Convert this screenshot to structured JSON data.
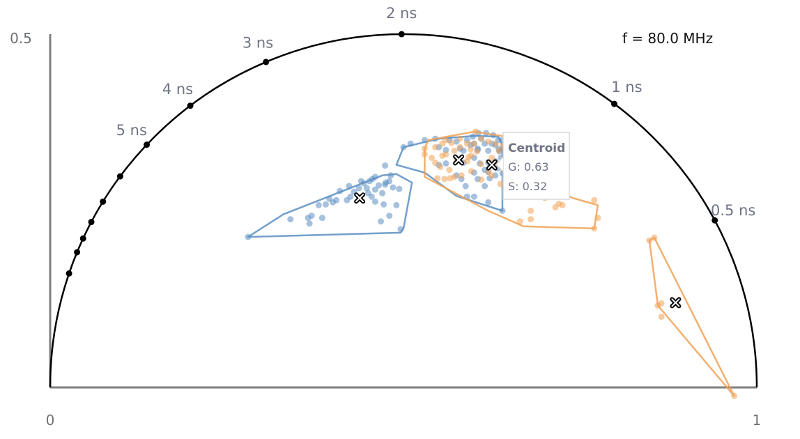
{
  "chart_data": {
    "type": "scatter",
    "title": "",
    "frequency_label": "f = 80.0 MHz",
    "xlim": [
      0,
      1
    ],
    "ylim": [
      0,
      0.5
    ],
    "x_ticks": [
      "0",
      "1"
    ],
    "y_ticks": [
      "0.5"
    ],
    "semicircle": {
      "lifetime_labels": [
        "0.5 ns",
        "1 ns",
        "2 ns",
        "3 ns",
        "4 ns",
        "5 ns"
      ],
      "lifetime_values_ns": [
        0.5,
        1,
        2,
        3,
        4,
        5
      ],
      "marker_lifetimes_ns": [
        0.5,
        1,
        2,
        3,
        4,
        5,
        6,
        7,
        8,
        9,
        10,
        12
      ]
    },
    "colors": {
      "blue": "#5b8ec2",
      "orange": "#f0a255",
      "semicircle": "#000000",
      "axis": "#7f7f7f"
    },
    "series": [
      {
        "color": "blue",
        "points": [
          [
            0.28,
            0.213
          ],
          [
            0.34,
            0.238
          ],
          [
            0.365,
            0.24
          ],
          [
            0.37,
            0.243
          ],
          [
            0.367,
            0.232
          ],
          [
            0.385,
            0.24
          ],
          [
            0.38,
            0.258
          ],
          [
            0.39,
            0.259
          ],
          [
            0.395,
            0.267
          ],
          [
            0.4,
            0.262
          ],
          [
            0.405,
            0.265
          ],
          [
            0.42,
            0.265
          ],
          [
            0.425,
            0.27
          ],
          [
            0.43,
            0.277
          ],
          [
            0.41,
            0.278
          ],
          [
            0.423,
            0.285
          ],
          [
            0.44,
            0.292
          ],
          [
            0.437,
            0.282
          ],
          [
            0.444,
            0.289
          ],
          [
            0.448,
            0.282
          ],
          [
            0.452,
            0.292
          ],
          [
            0.456,
            0.295
          ],
          [
            0.46,
            0.298
          ],
          [
            0.45,
            0.275
          ],
          [
            0.455,
            0.27
          ],
          [
            0.46,
            0.28
          ],
          [
            0.465,
            0.286
          ],
          [
            0.47,
            0.275
          ],
          [
            0.475,
            0.29
          ],
          [
            0.48,
            0.292
          ],
          [
            0.485,
            0.283
          ],
          [
            0.46,
            0.263
          ],
          [
            0.472,
            0.259
          ],
          [
            0.468,
            0.235
          ],
          [
            0.48,
            0.243
          ],
          [
            0.49,
            0.258
          ],
          [
            0.494,
            0.281
          ],
          [
            0.496,
            0.224
          ],
          [
            0.474,
            0.287
          ],
          [
            0.482,
            0.3
          ],
          [
            0.474,
            0.314
          ],
          [
            0.5,
            0.34
          ],
          [
            0.51,
            0.345
          ],
          [
            0.53,
            0.35
          ],
          [
            0.545,
            0.352
          ],
          [
            0.55,
            0.34
          ],
          [
            0.56,
            0.336
          ],
          [
            0.565,
            0.35
          ],
          [
            0.575,
            0.348
          ],
          [
            0.58,
            0.338
          ],
          [
            0.585,
            0.335
          ],
          [
            0.59,
            0.35
          ],
          [
            0.595,
            0.343
          ],
          [
            0.6,
            0.345
          ],
          [
            0.605,
            0.338
          ],
          [
            0.61,
            0.352
          ],
          [
            0.615,
            0.345
          ],
          [
            0.62,
            0.335
          ],
          [
            0.625,
            0.345
          ],
          [
            0.63,
            0.343
          ],
          [
            0.635,
            0.337
          ],
          [
            0.64,
            0.35
          ],
          [
            0.64,
            0.338
          ],
          [
            0.62,
            0.318
          ],
          [
            0.615,
            0.308
          ],
          [
            0.6,
            0.325
          ],
          [
            0.585,
            0.318
          ],
          [
            0.6,
            0.304
          ],
          [
            0.582,
            0.295
          ],
          [
            0.575,
            0.3
          ],
          [
            0.588,
            0.285
          ],
          [
            0.59,
            0.27
          ],
          [
            0.6,
            0.27
          ],
          [
            0.62,
            0.305
          ],
          [
            0.63,
            0.32
          ],
          [
            0.608,
            0.317
          ],
          [
            0.633,
            0.31
          ],
          [
            0.615,
            0.285
          ],
          [
            0.605,
            0.295
          ],
          [
            0.63,
            0.3
          ],
          [
            0.56,
            0.317
          ],
          [
            0.55,
            0.315
          ],
          [
            0.598,
            0.355
          ],
          [
            0.606,
            0.36
          ],
          [
            0.617,
            0.36
          ],
          [
            0.627,
            0.357
          ],
          [
            0.634,
            0.35
          ],
          [
            0.636,
            0.334
          ],
          [
            0.638,
            0.325
          ],
          [
            0.64,
            0.318
          ],
          [
            0.64,
            0.303
          ],
          [
            0.622,
            0.296
          ],
          [
            0.62,
            0.262
          ],
          [
            0.64,
            0.25
          ],
          [
            0.605,
            0.336
          ]
        ],
        "hulls": [
          [
            [
              0.28,
              0.213
            ],
            [
              0.33,
              0.245
            ],
            [
              0.47,
              0.3
            ],
            [
              0.49,
              0.302
            ],
            [
              0.512,
              0.29
            ],
            [
              0.5,
              0.225
            ],
            [
              0.496,
              0.219
            ]
          ],
          [
            [
              0.49,
              0.315
            ],
            [
              0.5,
              0.34
            ],
            [
              0.55,
              0.352
            ],
            [
              0.6,
              0.356
            ],
            [
              0.634,
              0.355
            ],
            [
              0.64,
              0.343
            ],
            [
              0.64,
              0.25
            ],
            [
              0.575,
              0.271
            ],
            [
              0.53,
              0.304
            ]
          ]
        ],
        "centroids": [
          [
            0.438,
            0.268
          ],
          [
            0.578,
            0.322
          ]
        ]
      },
      {
        "color": "orange",
        "points": [
          [
            0.53,
            0.338
          ],
          [
            0.54,
            0.325
          ],
          [
            0.53,
            0.33
          ],
          [
            0.545,
            0.34
          ],
          [
            0.555,
            0.345
          ],
          [
            0.56,
            0.35
          ],
          [
            0.568,
            0.346
          ],
          [
            0.572,
            0.335
          ],
          [
            0.58,
            0.34
          ],
          [
            0.59,
            0.345
          ],
          [
            0.595,
            0.337
          ],
          [
            0.6,
            0.345
          ],
          [
            0.61,
            0.352
          ],
          [
            0.62,
            0.348
          ],
          [
            0.63,
            0.345
          ],
          [
            0.635,
            0.335
          ],
          [
            0.64,
            0.342
          ],
          [
            0.645,
            0.34
          ],
          [
            0.56,
            0.33
          ],
          [
            0.575,
            0.322
          ],
          [
            0.59,
            0.32
          ],
          [
            0.61,
            0.316
          ],
          [
            0.625,
            0.325
          ],
          [
            0.63,
            0.316
          ],
          [
            0.64,
            0.31
          ],
          [
            0.65,
            0.3
          ],
          [
            0.66,
            0.302
          ],
          [
            0.67,
            0.295
          ],
          [
            0.68,
            0.29
          ],
          [
            0.69,
            0.285
          ],
          [
            0.7,
            0.3
          ],
          [
            0.705,
            0.28
          ],
          [
            0.71,
            0.283
          ],
          [
            0.715,
            0.275
          ],
          [
            0.72,
            0.26
          ],
          [
            0.725,
            0.258
          ],
          [
            0.7,
            0.268
          ],
          [
            0.715,
            0.255
          ],
          [
            0.77,
            0.265
          ],
          [
            0.775,
            0.24
          ],
          [
            0.77,
            0.225
          ],
          [
            0.68,
            0.25
          ],
          [
            0.68,
            0.238
          ],
          [
            0.665,
            0.235
          ],
          [
            0.555,
            0.328
          ],
          [
            0.592,
            0.326
          ],
          [
            0.58,
            0.352
          ],
          [
            0.602,
            0.362
          ],
          [
            0.548,
            0.296
          ],
          [
            0.552,
            0.312
          ],
          [
            0.545,
            0.318
          ],
          [
            0.558,
            0.295
          ],
          [
            0.566,
            0.296
          ],
          [
            0.565,
            0.308
          ],
          [
            0.572,
            0.298
          ],
          [
            0.582,
            0.3
          ],
          [
            0.596,
            0.306
          ],
          [
            0.61,
            0.294
          ],
          [
            0.62,
            0.305
          ],
          [
            0.625,
            0.3
          ],
          [
            0.637,
            0.288
          ],
          [
            0.596,
            0.328
          ],
          [
            0.604,
            0.334
          ],
          [
            0.848,
            0.208
          ],
          [
            0.855,
            0.212
          ],
          [
            0.865,
            0.119
          ],
          [
            0.86,
            0.116
          ],
          [
            0.865,
            0.1
          ],
          [
            0.968,
            -0.012
          ]
        ],
        "hulls": [
          [
            [
              0.53,
              0.338
            ],
            [
              0.535,
              0.35
            ],
            [
              0.6,
              0.362
            ],
            [
              0.645,
              0.355
            ],
            [
              0.69,
              0.29
            ],
            [
              0.74,
              0.268
            ],
            [
              0.775,
              0.258
            ],
            [
              0.77,
              0.225
            ],
            [
              0.67,
              0.228
            ],
            [
              0.62,
              0.25
            ],
            [
              0.53,
              0.298
            ]
          ],
          [
            [
              0.848,
              0.208
            ],
            [
              0.855,
              0.212
            ],
            [
              0.968,
              -0.012
            ],
            [
              0.86,
              0.116
            ],
            [
              0.848,
              0.208
            ]
          ]
        ],
        "centroids": [
          [
            0.625,
            0.315
          ],
          [
            0.885,
            0.12
          ]
        ]
      }
    ],
    "tooltip": {
      "title": "Centroid",
      "g_label": "G: 0.63",
      "s_label": "S: 0.32"
    }
  }
}
